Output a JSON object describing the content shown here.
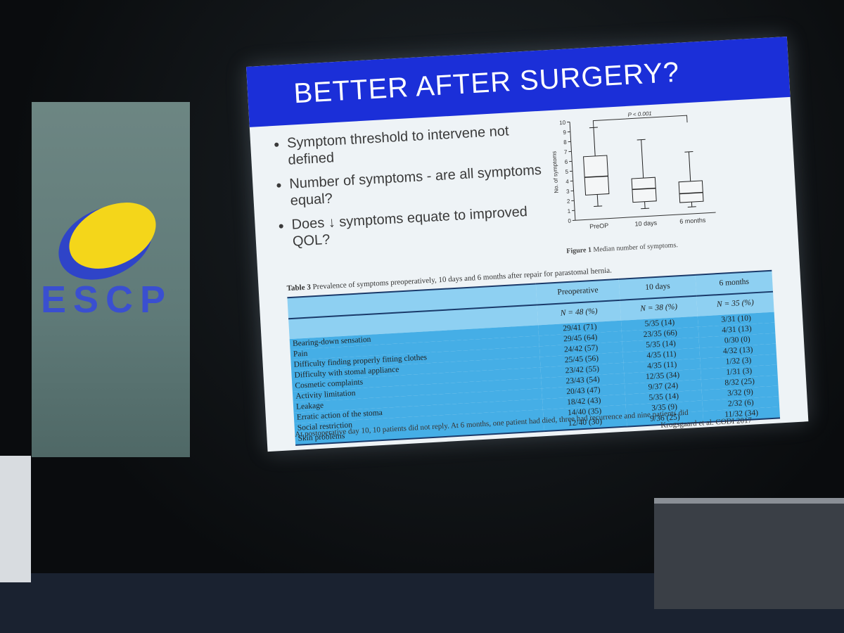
{
  "logo": {
    "text": "ESCP"
  },
  "slide": {
    "title": "BETTER AFTER SURGERY?",
    "bullets": [
      "Symptom threshold to intervene not defined",
      "Number of symptoms - are all symptoms equal?",
      "Does ↓ symptoms equate to improved QOL?"
    ],
    "figure": {
      "p_value": "P < 0.001",
      "y_label": "No. of symptoms",
      "ylim": [
        0,
        10
      ],
      "yticks": [
        0,
        1,
        2,
        3,
        4,
        5,
        6,
        7,
        8,
        9,
        10
      ],
      "categories": [
        "PreOP",
        "10 days",
        "6 months"
      ],
      "boxes": [
        {
          "min": 1.3,
          "q1": 2.5,
          "median": 4.3,
          "q3": 6.4,
          "max": 9.3
        },
        {
          "min": 0.8,
          "q1": 1.5,
          "median": 2.8,
          "q3": 3.9,
          "max": 7.8
        },
        {
          "min": 0.7,
          "q1": 1.2,
          "median": 2.1,
          "q3": 3.3,
          "max": 6.3
        }
      ],
      "caption_label": "Figure 1",
      "caption": "Median number of symptoms."
    },
    "table": {
      "caption_label": "Table 3",
      "caption": "Prevalence of symptoms preoperatively, 10 days and 6 months after repair for parastomal hernia.",
      "columns": [
        {
          "name": "Preoperative",
          "n": "N = 48 (%)"
        },
        {
          "name": "10 days",
          "n": "N = 38 (%)"
        },
        {
          "name": "6 months",
          "n": "N = 35 (%)"
        }
      ],
      "rows": [
        [
          "Bearing-down sensation",
          "29/41 (71)",
          "5/35 (14)",
          "3/31 (10)"
        ],
        [
          "Pain",
          "29/45 (64)",
          "23/35 (66)",
          "4/31 (13)"
        ],
        [
          "Difficulty finding properly fitting clothes",
          "24/42 (57)",
          "5/35 (14)",
          "0/30 (0)"
        ],
        [
          "Difficulty with stomal appliance",
          "25/45 (56)",
          "4/35 (11)",
          "4/32 (13)"
        ],
        [
          "Cosmetic complaints",
          "23/42 (55)",
          "4/35 (11)",
          "1/32 (3)"
        ],
        [
          "Activity limitation",
          "23/43 (54)",
          "12/35 (34)",
          "1/31 (3)"
        ],
        [
          "Leakage",
          "20/43 (47)",
          "9/37 (24)",
          "8/32 (25)"
        ],
        [
          "Erratic action of the stoma",
          "18/42 (43)",
          "5/35 (14)",
          "3/32 (9)"
        ],
        [
          "Social restriction",
          "14/40 (35)",
          "3/35 (9)",
          "2/32 (6)"
        ],
        [
          "Skin problems",
          "12/40 (30)",
          "9/36 (25)",
          "11/32 (34)"
        ]
      ],
      "footnote": "At postoperative day 10, 10 patients did not reply. At 6 months, one patient had died, three had recurrence and nine patients did",
      "citation": "Krogsgaard et al. CODI 2017"
    }
  }
}
